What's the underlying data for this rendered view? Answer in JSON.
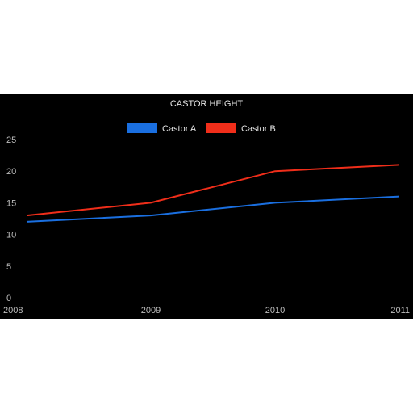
{
  "chart_data": {
    "type": "line",
    "title": "CASTOR HEIGHT",
    "xlabel": "",
    "ylabel": "",
    "categories": [
      "2008",
      "2009",
      "2010",
      "2011"
    ],
    "series": [
      {
        "name": "Castor A",
        "color": "#1a6fe0",
        "values": [
          12,
          13,
          15,
          16
        ]
      },
      {
        "name": "Castor B",
        "color": "#f02e1a",
        "values": [
          13,
          15,
          20,
          21
        ]
      }
    ],
    "ylim": [
      0,
      25
    ],
    "yticks": [
      "0",
      "5",
      "10",
      "15",
      "20",
      "25"
    ],
    "grid": false,
    "legend_position": "top",
    "background": "#000000"
  }
}
